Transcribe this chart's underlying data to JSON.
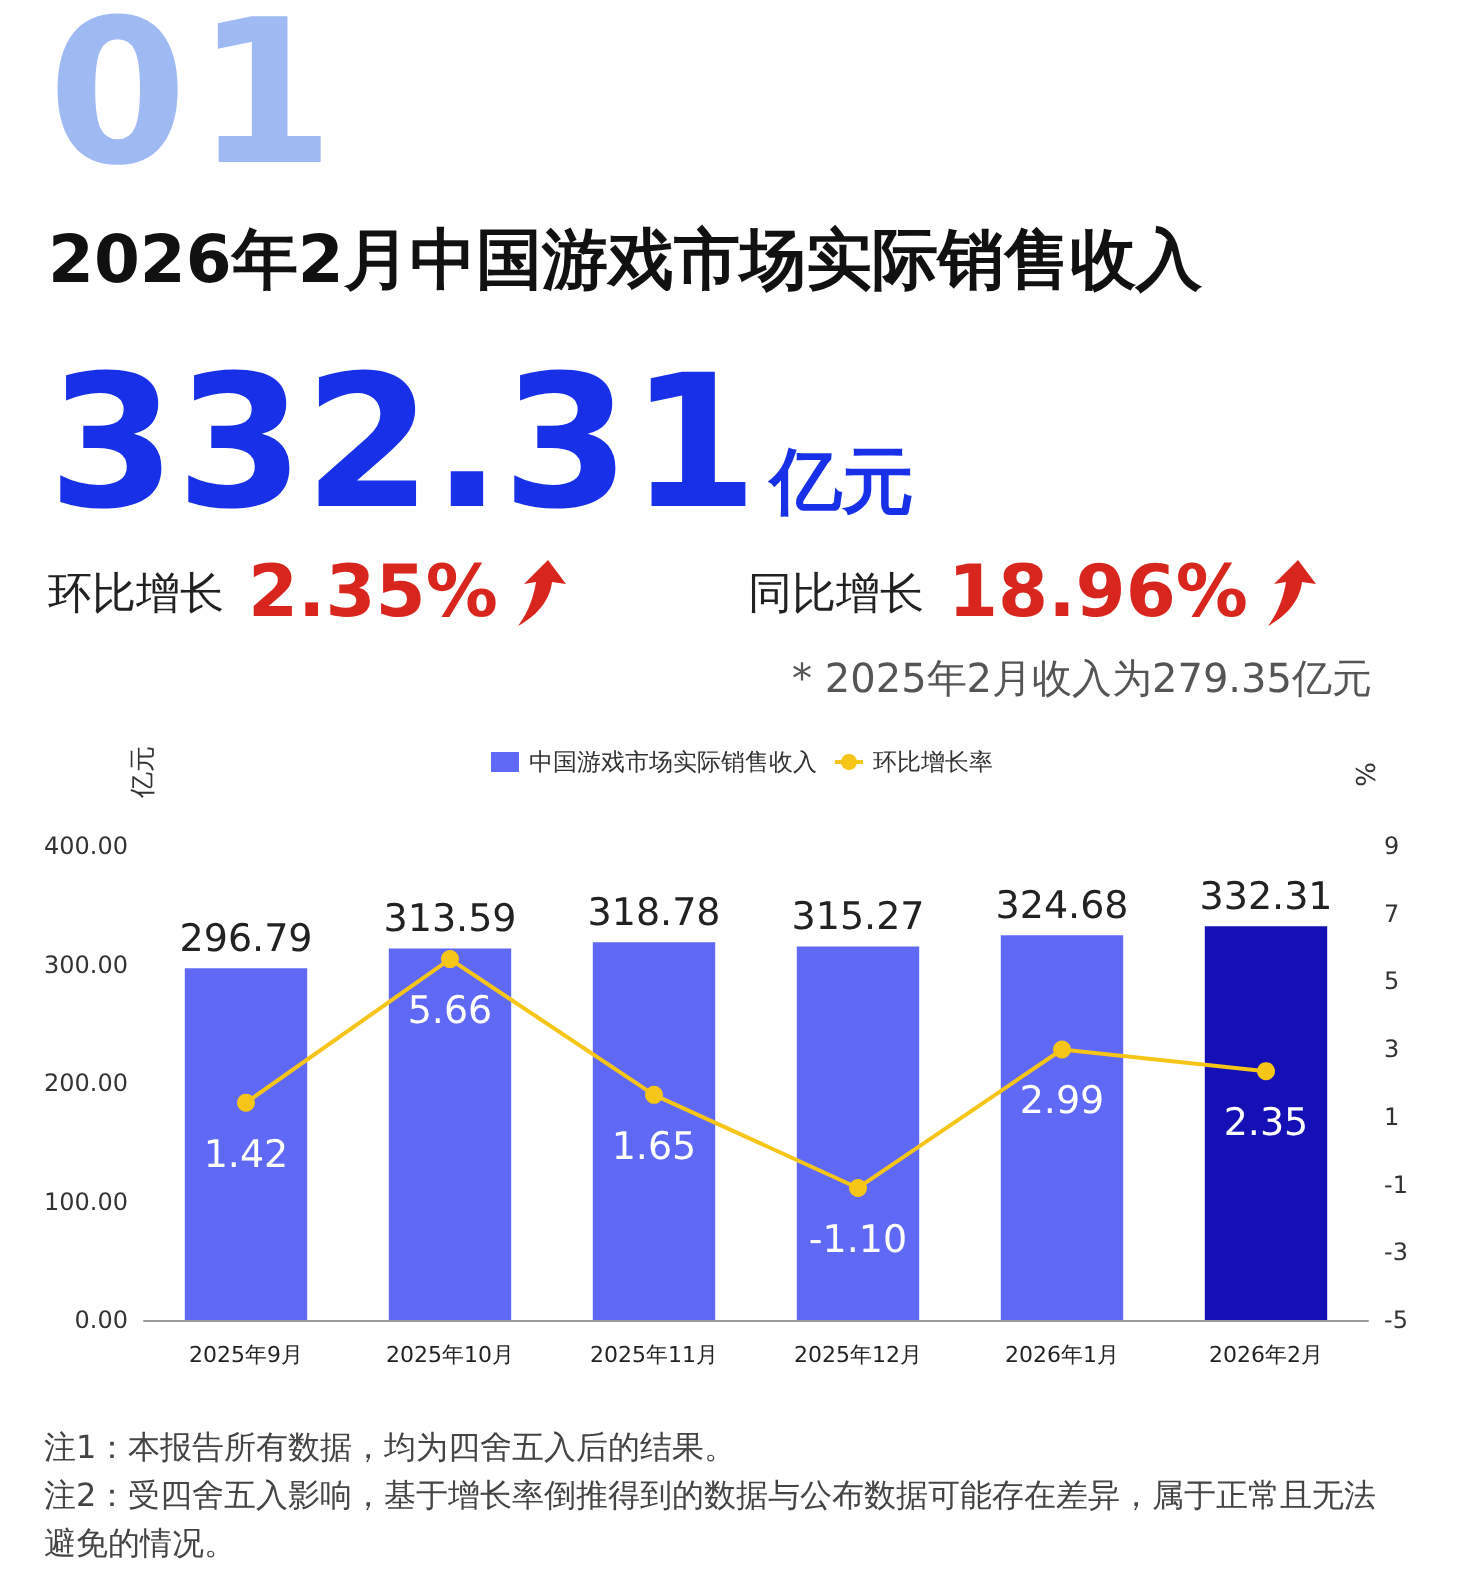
{
  "chart_data": {
    "type": "bar",
    "title": "2026年2月中国游戏市场实际销售收入",
    "subtitle": "332.31亿元",
    "annotations": [
      "01",
      "环比增长 2.35%",
      "同比增长 18.96%",
      "* 2025年2月收入为279.35亿元",
      "注1：本报告所有数据，均为四舍五入后的结果。",
      "注2：受四舍五入影响，基于增长率倒推得到的数据与公布数据可能存在差异，属于正常且无法避免的情况。"
    ],
    "ylabel": "亿元",
    "y2label": "%",
    "categories": [
      "2025年9月",
      "2025年10月",
      "2025年11月",
      "2025年12月",
      "2026年1月",
      "2026年2月"
    ],
    "series": [
      {
        "name": "中国游戏市场实际销售收入",
        "color": "#6068f6",
        "colors": [
          "#6068f6",
          "#6068f6",
          "#6068f6",
          "#6068f6",
          "#6068f6",
          "#1510b5"
        ],
        "values": [
          296.79,
          313.59,
          318.78,
          315.27,
          324.68,
          332.31
        ]
      },
      {
        "name": "环比增长率",
        "type": "line",
        "axis": "y2",
        "color": "#f5c518",
        "values": [
          1.42,
          5.66,
          1.65,
          -1.1,
          2.99,
          2.35
        ],
        "value_labels": [
          "1.42",
          "5.66",
          "1.65",
          "-1.10",
          "2.99",
          "2.35"
        ]
      }
    ],
    "data_labels": true,
    "ylim": [
      0,
      400
    ],
    "yticks": [
      {
        "value": 0,
        "label": "0.00"
      },
      {
        "value": 100,
        "label": "100.00"
      },
      {
        "value": 200,
        "label": "200.00"
      },
      {
        "value": 300,
        "label": "300.00"
      },
      {
        "value": 400,
        "label": "400.00"
      }
    ],
    "y2lim": [
      -5,
      9
    ],
    "y2ticks": [
      -5,
      -3,
      -1,
      1,
      3,
      5,
      7,
      9
    ],
    "legend": "top",
    "marker": "circle",
    "line_style": "solid"
  }
}
